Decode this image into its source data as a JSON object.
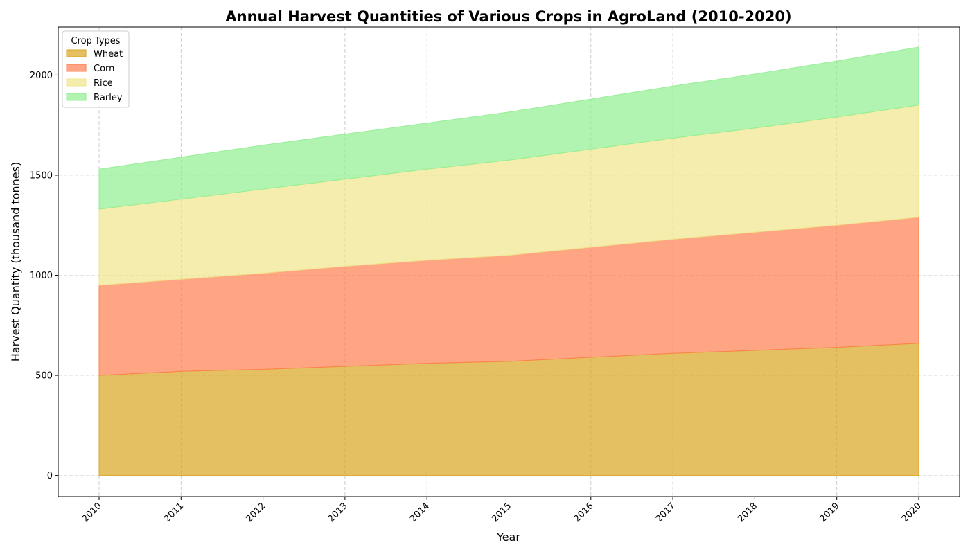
{
  "chart_data": {
    "type": "area",
    "stacked": true,
    "title": "Annual Harvest Quantities of Various Crops in AgroLand (2010-2020)",
    "xlabel": "Year",
    "ylabel": "Harvest Quantity (thousand tonnes)",
    "categories": [
      "2010",
      "2011",
      "2012",
      "2013",
      "2014",
      "2015",
      "2016",
      "2017",
      "2018",
      "2019",
      "2020"
    ],
    "ylim": [
      -105,
      2240
    ],
    "yticks": [
      0,
      500,
      1000,
      1500,
      2000
    ],
    "grid": true,
    "legend_title": "Crop Types",
    "legend_position": "top-left",
    "series": [
      {
        "name": "Wheat",
        "color": "#DAA520",
        "values": [
          500,
          520,
          530,
          545,
          560,
          570,
          590,
          610,
          625,
          640,
          660
        ]
      },
      {
        "name": "Corn",
        "color": "#FF7F50",
        "values": [
          450,
          460,
          480,
          500,
          515,
          530,
          550,
          570,
          590,
          610,
          630
        ]
      },
      {
        "name": "Rice",
        "color": "#F0E68C",
        "values": [
          380,
          400,
          420,
          435,
          455,
          475,
          490,
          505,
          520,
          540,
          560
        ]
      },
      {
        "name": "Barley",
        "color": "#90EE90",
        "values": [
          200,
          210,
          220,
          225,
          230,
          240,
          250,
          260,
          270,
          280,
          290
        ]
      }
    ]
  }
}
